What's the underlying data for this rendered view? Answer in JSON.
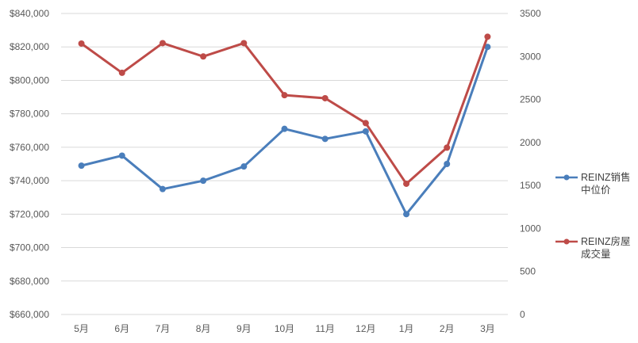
{
  "chart_data": {
    "type": "line",
    "categories": [
      "5月",
      "6月",
      "7月",
      "8月",
      "9月",
      "10月",
      "11月",
      "12月",
      "1月",
      "2月",
      "3月"
    ],
    "series": [
      {
        "name": "REINZ销售中位价",
        "axis": "left",
        "color": "#4a7ebb",
        "values": [
          749000,
          755000,
          735000,
          740000,
          748500,
          771000,
          765000,
          769500,
          720000,
          750000,
          820000
        ]
      },
      {
        "name": "REINZ房屋成交量",
        "axis": "right",
        "color": "#be4b48",
        "values": [
          3150,
          2810,
          3155,
          3000,
          3155,
          2550,
          2515,
          2225,
          1520,
          1940,
          3230
        ]
      }
    ],
    "left_axis": {
      "min": 660000,
      "max": 840000,
      "step": 20000,
      "tick_labels": [
        "$660,000",
        "$680,000",
        "$700,000",
        "$720,000",
        "$740,000",
        "$760,000",
        "$780,000",
        "$800,000",
        "$820,000",
        "$840,000"
      ]
    },
    "right_axis": {
      "min": 0,
      "max": 3500,
      "step": 500,
      "tick_labels": [
        "0",
        "500",
        "1000",
        "1500",
        "2000",
        "2500",
        "3000",
        "3500"
      ]
    },
    "grid": true,
    "legend_position": "right",
    "title": "",
    "xlabel": "",
    "ylabel": ""
  },
  "legend": {
    "items": [
      {
        "line1": "REINZ销售",
        "line2": "中位价",
        "color": "#4a7ebb"
      },
      {
        "line1": "REINZ房屋",
        "line2": "成交量",
        "color": "#be4b48"
      }
    ]
  }
}
